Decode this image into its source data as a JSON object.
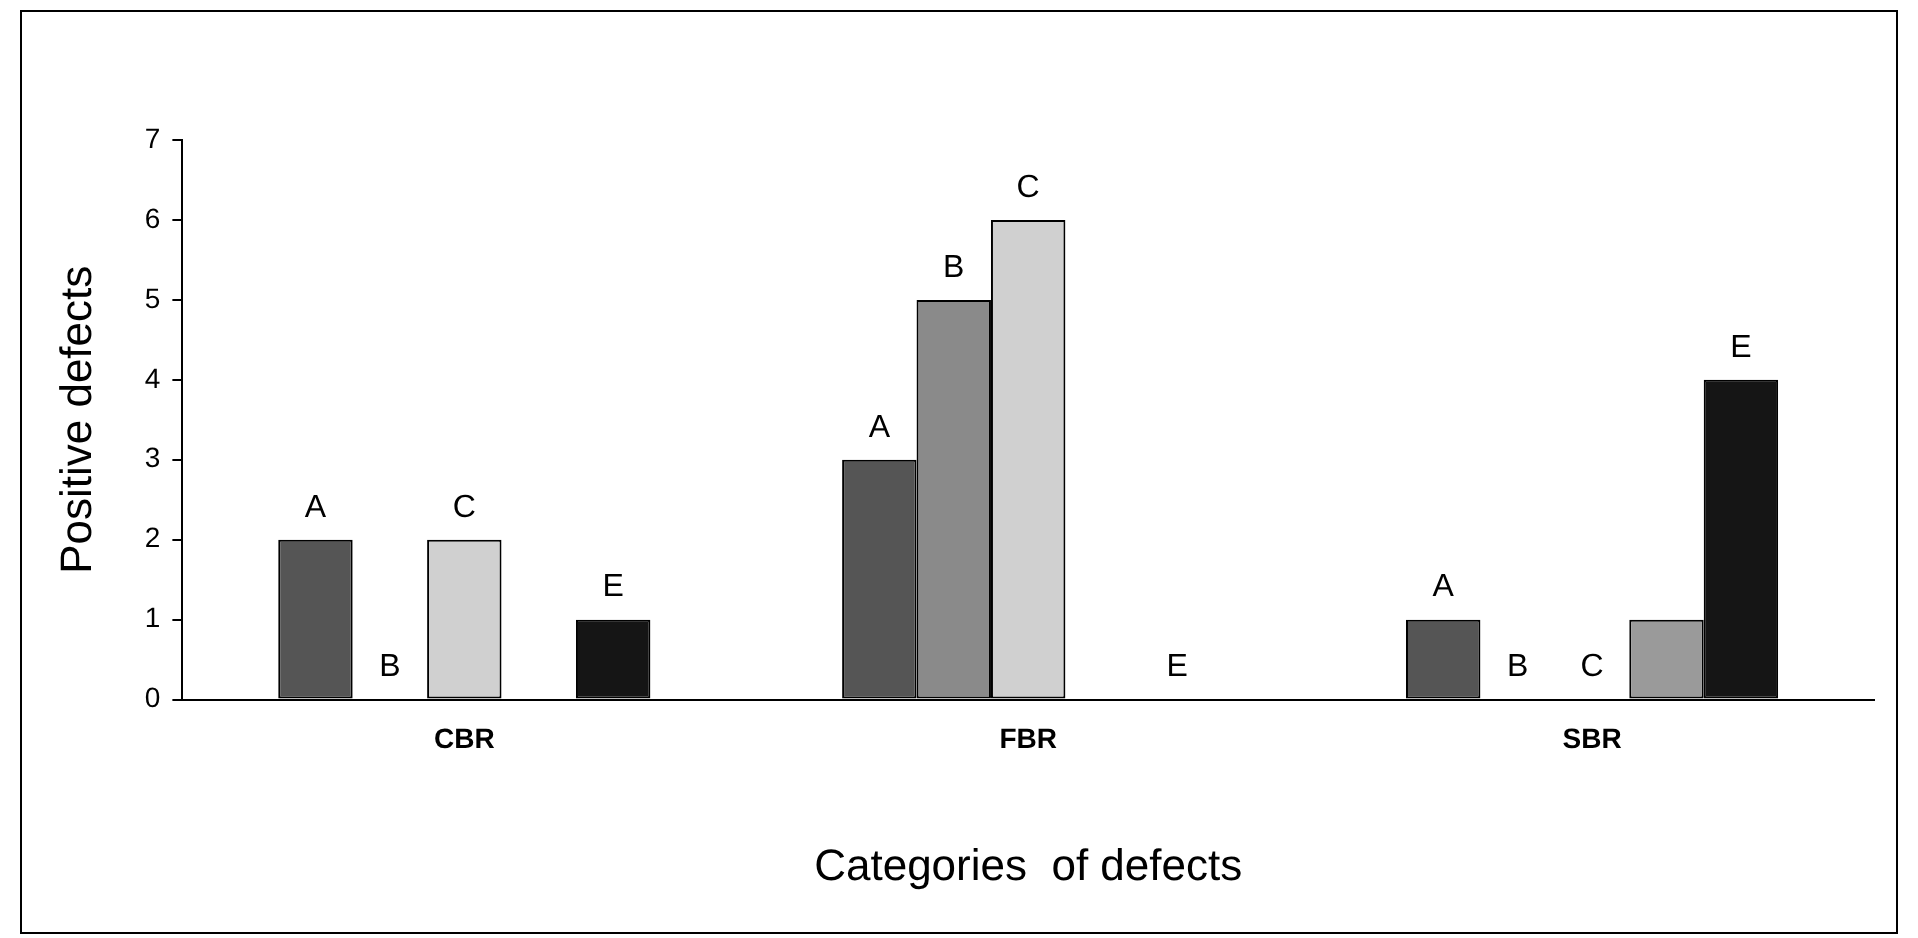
{
  "chart_data": {
    "type": "bar",
    "xlabel": "Categories  of defects",
    "ylabel": "Positive defects",
    "categories": [
      "CBR",
      "FBR",
      "SBR"
    ],
    "series": [
      {
        "name": "A",
        "color": "#555555",
        "values": [
          2,
          3,
          1
        ]
      },
      {
        "name": "B",
        "color": "#8a8a8a",
        "values": [
          0,
          5,
          0
        ]
      },
      {
        "name": "C",
        "color": "#d0d0d0",
        "values": [
          2,
          6,
          0
        ]
      },
      {
        "color": "#9a9a9a",
        "values": [
          0,
          0,
          1
        ]
      },
      {
        "name": "E",
        "color": "#151515",
        "values": [
          1,
          0,
          4
        ]
      }
    ],
    "ylim": [
      0,
      7
    ],
    "yticks": [
      0,
      1,
      2,
      3,
      4,
      5,
      6,
      7
    ],
    "grid": false,
    "legend": false
  }
}
